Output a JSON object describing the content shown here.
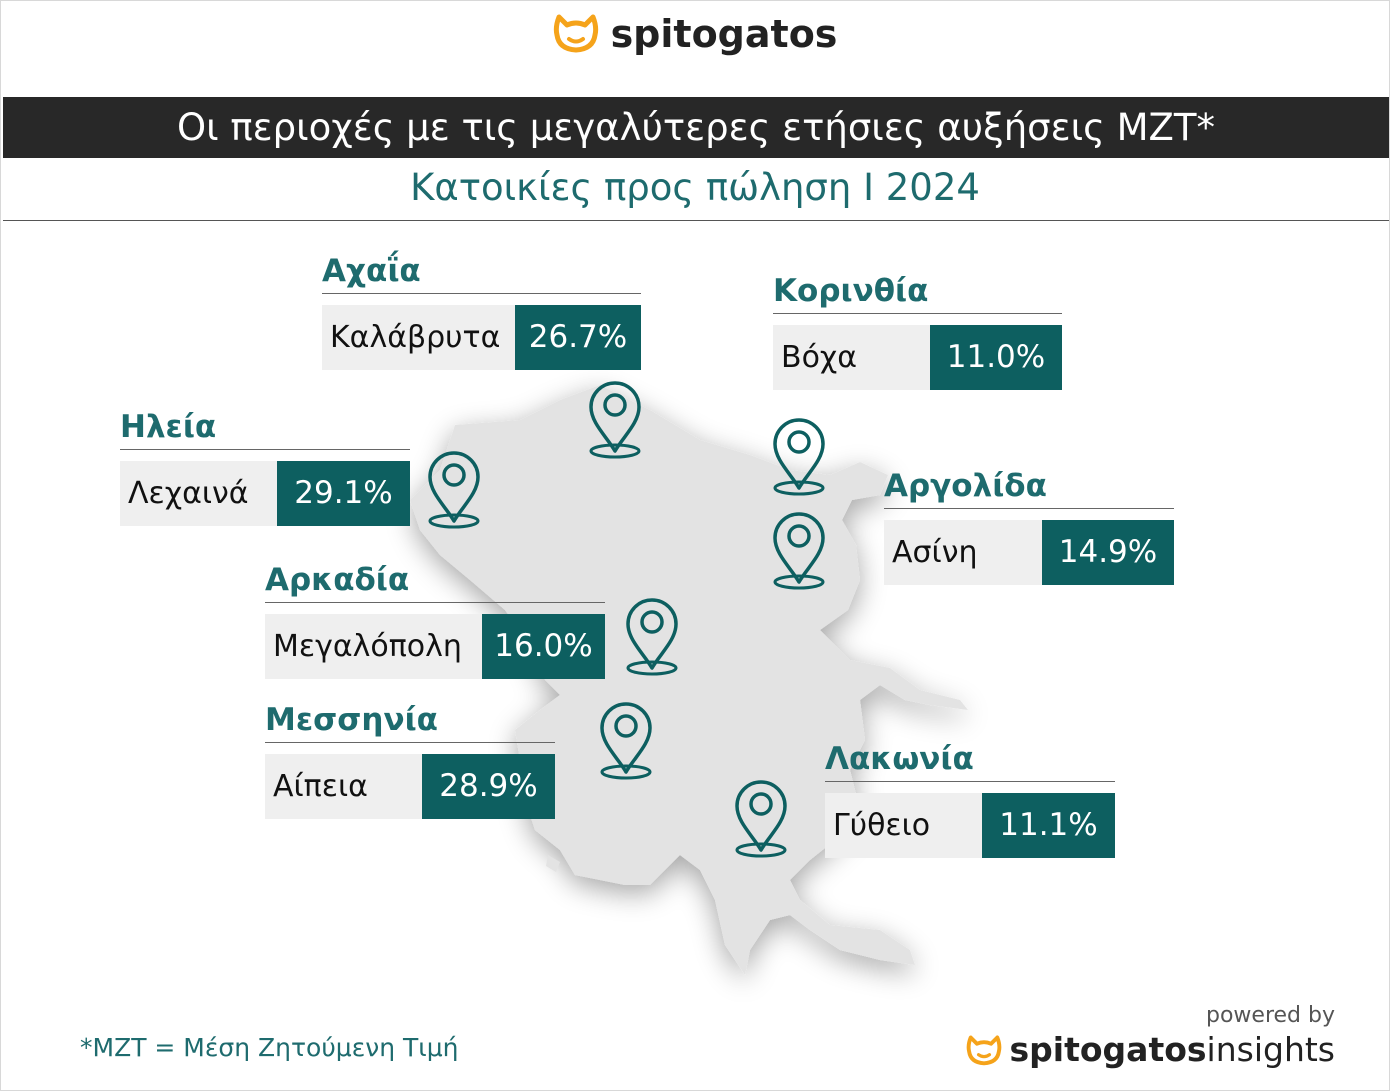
{
  "brand": {
    "name": "spitogatos",
    "accent": "#f5a31a",
    "teal": "#0d5f60"
  },
  "title": "Οι περιοχές με τις μεγαλύτερες ετήσιες αυξήσεις ΜΖΤ*",
  "subtitle": "Κατοικίες προς πώληση Ι 2024",
  "regions": [
    {
      "region": "Αχαΐα",
      "town": "Καλάβρυτα",
      "value": "26.7%"
    },
    {
      "region": "Κορινθία",
      "town": "Βόχα",
      "value": "11.0%"
    },
    {
      "region": "Ηλεία",
      "town": "Λεχαινά",
      "value": "29.1%"
    },
    {
      "region": "Αργολίδα",
      "town": "Ασίνη",
      "value": "14.9%"
    },
    {
      "region": "Αρκαδία",
      "town": "Μεγαλόπολη",
      "value": "16.0%"
    },
    {
      "region": "Μεσσηνία",
      "town": "Αίπεια",
      "value": "28.9%"
    },
    {
      "region": "Λακωνία",
      "town": "Γύθειο",
      "value": "11.1%"
    }
  ],
  "pin_icon": "map-pin-icon",
  "footnote": "*ΜΖΤ = Μέση Ζητούμενη Τιμή",
  "powered_by": "powered by",
  "footer_brand": {
    "bold": "spitogatos",
    "light": "insights"
  }
}
